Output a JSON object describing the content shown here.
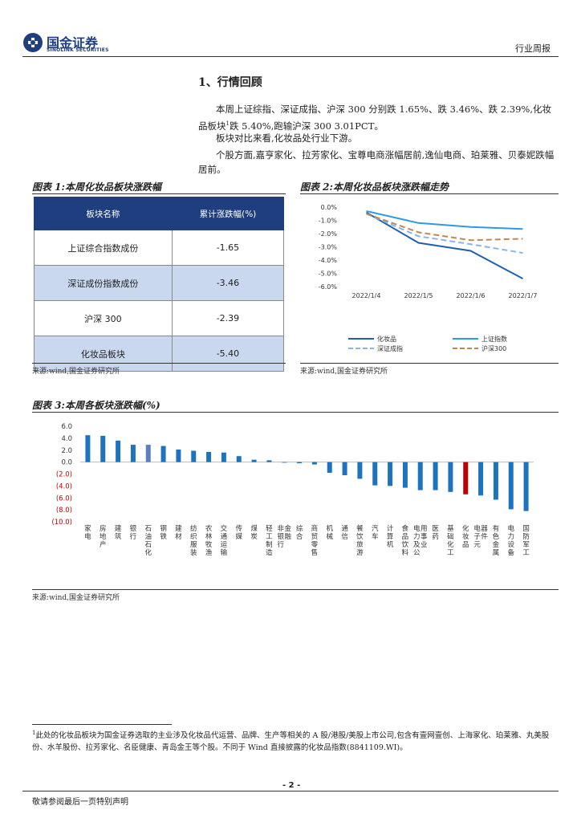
{
  "header": {
    "logo_cn": "国金证券",
    "logo_en": "SINOLINK SECURITIES",
    "report_type": "行业周报"
  },
  "section": {
    "title": "1、行情回顾",
    "paragraphs": [
      "本周上证综指、深证成指、沪深 300 分别跌 1.65%、跌 3.46%、跌 2.39%,化妆品板块",
      "板块对比来看,化妆品处行业下游。",
      "个股方面,嘉亨家化、拉芳家化、宝尊电商涨幅居前,逸仙电商、珀莱雅、贝泰妮跌幅居前。"
    ],
    "para1_sup": "1",
    "para1_tail": "跌 5.40%,跑输沪深 300 3.01PCT。"
  },
  "fig1": {
    "caption": "图表 1:本周化妆品板块涨跌幅",
    "headers": [
      "板块名称",
      "累计涨跌幅(%)"
    ],
    "rows": [
      {
        "name": "上证综合指数成份",
        "value": "-1.65"
      },
      {
        "name": "深证成份指数成份",
        "value": "-3.46"
      },
      {
        "name": "沪深 300",
        "value": "-2.39"
      },
      {
        "name": "化妆品板块",
        "value": "-5.40"
      }
    ],
    "source": "来源:wind,国金证券研究所"
  },
  "fig2": {
    "caption": "图表 2:本周化妆品板块涨跌幅走势",
    "source": "来源:wind,国金证券研究所"
  },
  "fig3": {
    "caption": "图表 3:本周各板块涨跌幅(%)",
    "source": "来源:wind,国金证券研究所"
  },
  "chart_data": [
    {
      "type": "line",
      "x": [
        "2022/1/4",
        "2022/1/5",
        "2022/1/6",
        "2022/1/7"
      ],
      "ylim": [
        -6.0,
        0.0
      ],
      "yticks": [
        "0.0%",
        "-1.0%",
        "-2.0%",
        "-3.0%",
        "-4.0%",
        "-5.0%",
        "-6.0%"
      ],
      "series": [
        {
          "name": "化妆品",
          "values": [
            -0.4,
            -2.7,
            -3.3,
            -5.4
          ],
          "color": "#1f5fb4",
          "dash": false
        },
        {
          "name": "上证指数",
          "values": [
            -0.3,
            -1.2,
            -1.5,
            -1.65
          ],
          "color": "#2e9ae6",
          "dash": false
        },
        {
          "name": "深证成指",
          "values": [
            -0.5,
            -2.2,
            -2.8,
            -3.46
          ],
          "color": "#8ab4ee",
          "dash": true
        },
        {
          "name": "沪深300",
          "values": [
            -0.5,
            -1.9,
            -2.5,
            -2.39
          ],
          "color": "#c08850",
          "dash": true
        }
      ],
      "grid": false,
      "legend": "bottom"
    },
    {
      "type": "bar",
      "categories": [
        "家电",
        "房地产",
        "建筑",
        "银行",
        "石油石化",
        "钢铁",
        "建材",
        "纺织服装",
        "农林牧渔",
        "交通运输",
        "传媒",
        "煤炭",
        "轻工制造",
        "非银行金融",
        "综合",
        "商贸零售",
        "机械",
        "通信",
        "餐饮旅游",
        "汽车",
        "计算机",
        "食品饮料",
        "电力及公用事业",
        "医药",
        "基础化工",
        "化妆品",
        "电子元器件",
        "有色金属",
        "电力设备",
        "国防军工"
      ],
      "values": [
        4.5,
        4.4,
        3.6,
        2.9,
        2.9,
        2.7,
        2.1,
        1.9,
        1.7,
        1.6,
        1.0,
        0.4,
        0.3,
        -0.1,
        -0.2,
        -0.4,
        -1.8,
        -2.2,
        -2.8,
        -3.9,
        -4.0,
        -4.3,
        -4.7,
        -4.7,
        -5.0,
        -5.4,
        -5.6,
        -6.3,
        -7.9,
        -8.2
      ],
      "ylim": [
        -10.0,
        6.0
      ],
      "yticks": [
        "6.0",
        "4.0",
        "2.0",
        "0.0",
        "(2.0)",
        "(4.0)",
        "(6.0)",
        "(8.0)",
        "(10.0)"
      ],
      "bar_color": "#1e73be",
      "highlight": {
        "石油石化": "#5b7fbf",
        "化妆品": "#c00000"
      }
    }
  ],
  "footnote": {
    "mark": "1",
    "text": "此处的化妆品板块为国金证券选取的主业涉及化妆品代运营、品牌、生产等相关的 A 股/港股/美股上市公司,包含有壹网壹创、上海家化、珀莱雅、丸美股份、水羊股份、拉芳家化、名臣健康、青岛金王等个股。不同于 Wind 直接披露的化妆品指数(8841109.WI)。"
  },
  "footer": {
    "page": "- 2 -",
    "disclaimer": "敬请参阅最后一页特别声明"
  }
}
